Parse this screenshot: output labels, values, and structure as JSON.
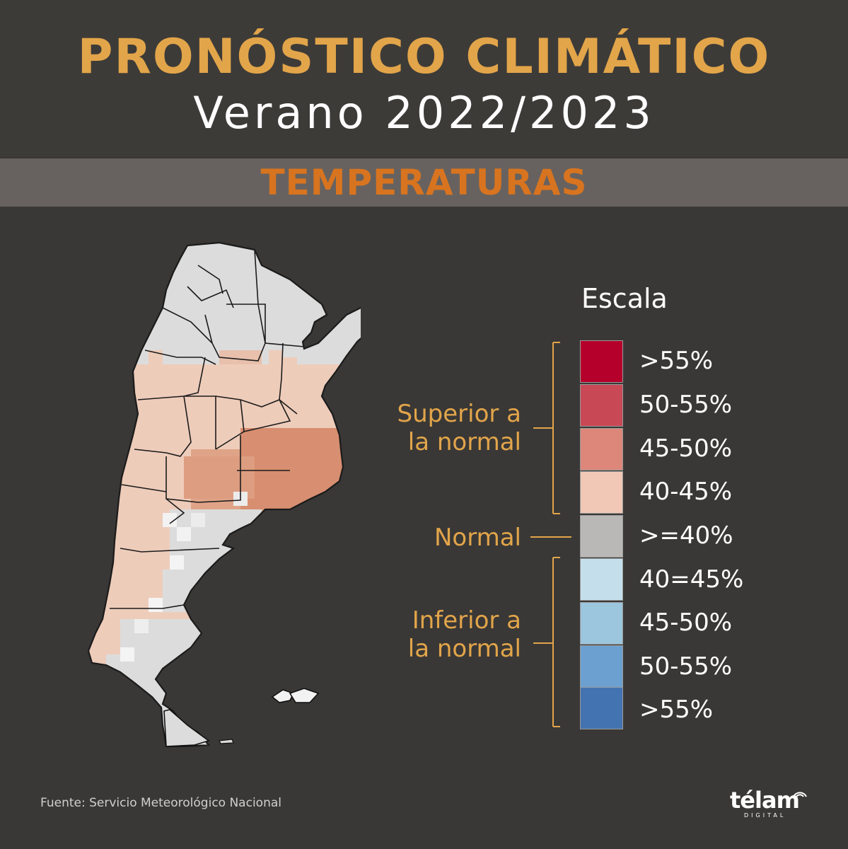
{
  "header": {
    "title": "PRONÓSTICO CLIMÁTICO",
    "subtitle": "Verano 2022/2023"
  },
  "section": {
    "title": "TEMPERATURAS"
  },
  "legend": {
    "title": "Escala",
    "items": [
      {
        "label": ">55%",
        "color": "#b5002b"
      },
      {
        "label": "50-55%",
        "color": "#c84856"
      },
      {
        "label": "45-50%",
        "color": "#dc877a"
      },
      {
        "label": "40-45%",
        "color": "#f1c8b5"
      },
      {
        "label": ">=40%",
        "color": "#b9b8b6"
      },
      {
        "label": "40=45%",
        "color": "#c4dfeb"
      },
      {
        "label": "45-50%",
        "color": "#9cc5de"
      },
      {
        "label": "50-55%",
        "color": "#6ba0d0"
      },
      {
        "label": ">55%",
        "color": "#4473b1"
      }
    ],
    "groups": {
      "superior": "Superior a la normal",
      "superior_line1": "Superior a",
      "superior_line2": "la normal",
      "normal": "Normal",
      "inferior": "Inferior a la normal",
      "inferior_line1": "Inferior a",
      "inferior_line2": "la normal"
    }
  },
  "map": {
    "region": "Argentina",
    "colors": {
      "normal": "#dcdcdc",
      "light": "#eeccba",
      "medium": "#e0a285",
      "strong": "#d88e70",
      "border": "#1b1b1b"
    }
  },
  "source": "Fuente: Servicio Meteorológico Nacional",
  "logo": {
    "name": "télam",
    "sub": "DIGITAL"
  }
}
